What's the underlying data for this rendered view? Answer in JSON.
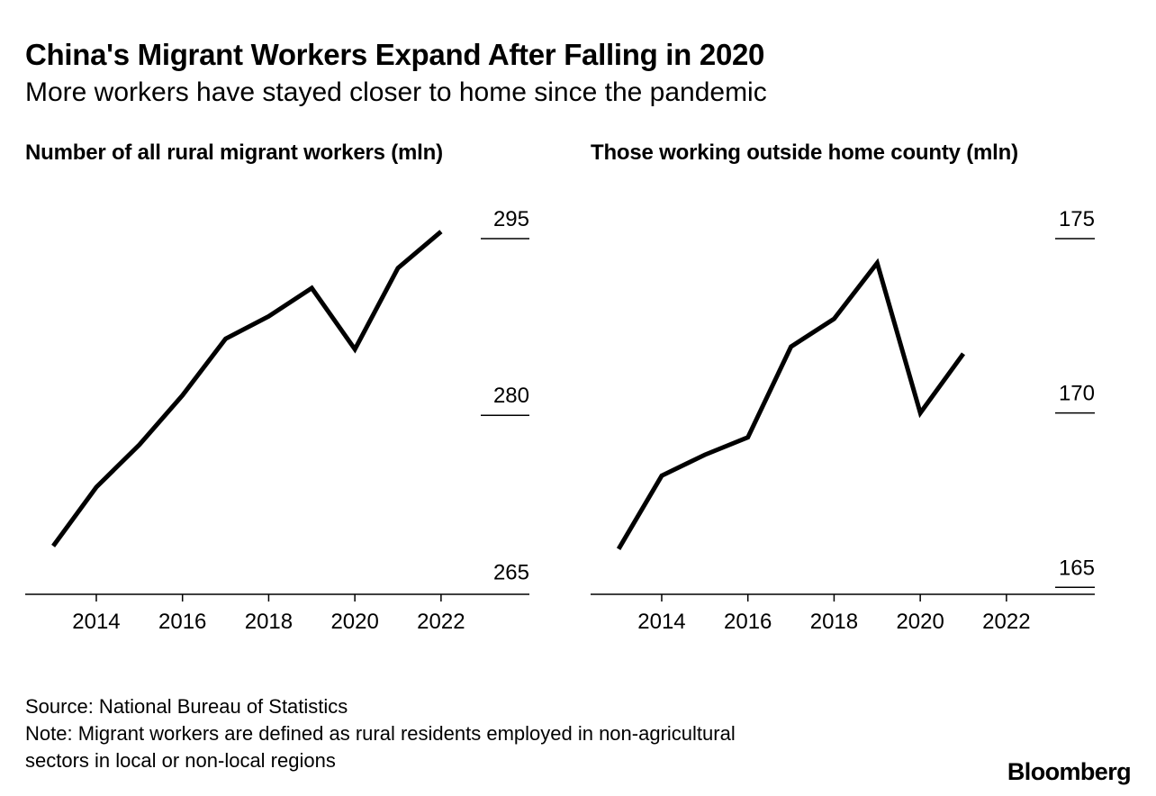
{
  "header": {
    "title": "China's Migrant Workers Expand After Falling in 2020",
    "subtitle": "More workers have stayed closer to home since the pandemic"
  },
  "chart_data": [
    {
      "type": "line",
      "title": "Number of all rural migrant workers (mln)",
      "x": [
        2013,
        2014,
        2015,
        2016,
        2017,
        2018,
        2019,
        2020,
        2021,
        2022
      ],
      "values": [
        268.9,
        273.9,
        277.5,
        281.7,
        286.5,
        288.4,
        290.8,
        285.6,
        292.5,
        295.6
      ],
      "xlim": [
        2012.35,
        2024.05
      ],
      "ylim": [
        264.8,
        295
      ],
      "xticks": [
        2014,
        2016,
        2018,
        2020,
        2022
      ],
      "yticks": [
        295,
        280,
        265
      ],
      "grid": false,
      "line_color": "#000000"
    },
    {
      "type": "line",
      "title": "Those working outside home county (mln)",
      "x": [
        2013,
        2014,
        2015,
        2016,
        2017,
        2018,
        2019,
        2020,
        2021
      ],
      "values": [
        166.1,
        168.2,
        168.8,
        169.3,
        171.9,
        172.7,
        174.3,
        170.0,
        171.7
      ],
      "xlim": [
        2012.35,
        2024.05
      ],
      "ylim": [
        164.8,
        175
      ],
      "xticks": [
        2014,
        2016,
        2018,
        2020,
        2022
      ],
      "yticks": [
        175,
        170,
        165
      ],
      "grid": false,
      "line_color": "#000000"
    }
  ],
  "footer": {
    "source": "Source: National Bureau of Statistics",
    "note_line1": "Note: Migrant workers are defined as rural residents employed in non-agricultural",
    "note_line2": "sectors in local or non-local regions",
    "brand": "Bloomberg"
  }
}
